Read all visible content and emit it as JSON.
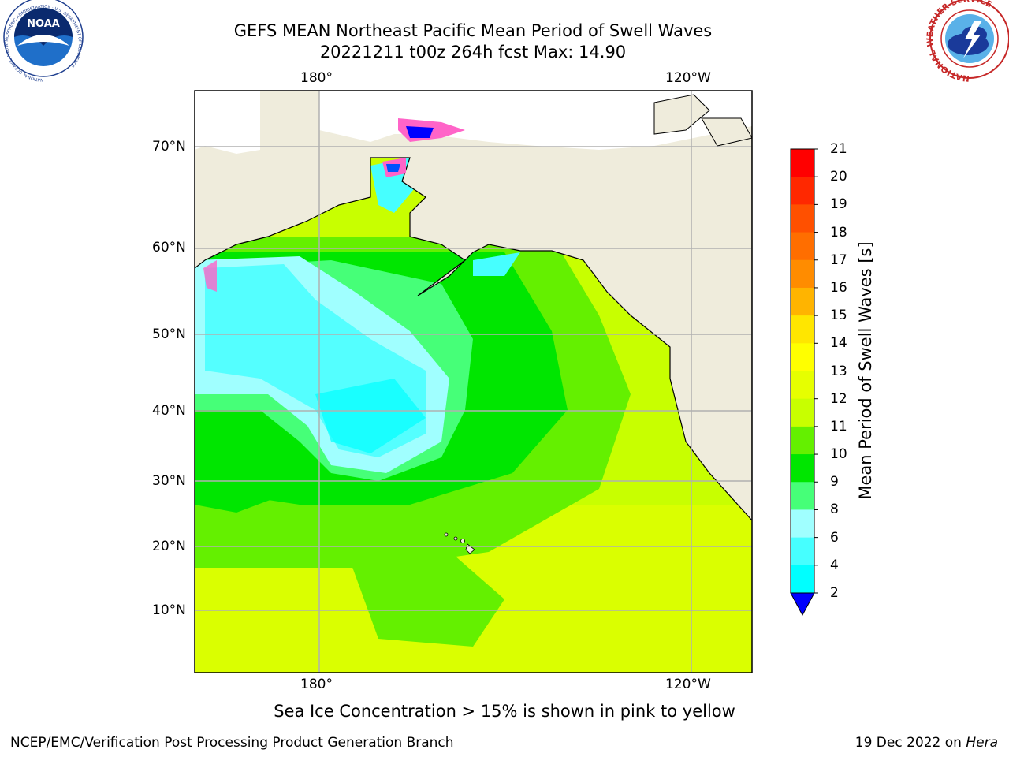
{
  "title": {
    "line1": "GEFS MEAN Northeast Pacific Mean Period of Swell Waves",
    "line2": "20221211 t00z 264h fcst   Max: 14.90"
  },
  "map": {
    "top_lon_labels": [
      "180°",
      "120°W"
    ],
    "bottom_lon_labels": [
      "180°",
      "120°W"
    ],
    "lat_labels": [
      "70°N",
      "60°N",
      "50°N",
      "40°N",
      "30°N",
      "20°N",
      "10°N"
    ]
  },
  "colorbar": {
    "title": "Mean Period of Swell Waves [s]",
    "ticks": [
      "21",
      "20",
      "19",
      "18",
      "17",
      "16",
      "15",
      "14",
      "13",
      "12",
      "11",
      "10",
      "9",
      "8",
      "6",
      "4",
      "2"
    ],
    "colors": [
      "#ff0000",
      "#ff2800",
      "#ff5000",
      "#ff6e00",
      "#ff8c00",
      "#ffb400",
      "#ffe600",
      "#ffff00",
      "#e6ff00",
      "#c8ff00",
      "#64f000",
      "#00e600",
      "#46ff78",
      "#a0ffff",
      "#46ffff",
      "#00ffff",
      "#0096ff",
      "#0050ff",
      "#0000ff"
    ]
  },
  "caption": "Sea Ice Concentration > 15% is shown in pink to yellow",
  "footer": {
    "left": "NCEP/EMC/Verification Post Processing Product Generation Branch",
    "date": "19 Dec 2022 on ",
    "host": "Hera"
  },
  "logos": {
    "noaa_text": "NOAA",
    "noaa_ring_text": "NATIONAL OCEANIC AND ATMOSPHERIC ADMINISTRATION · U.S. DEPARTMENT OF COMMERCE",
    "nws_ring_text": "NATIONAL WEATHER SERVICE"
  }
}
